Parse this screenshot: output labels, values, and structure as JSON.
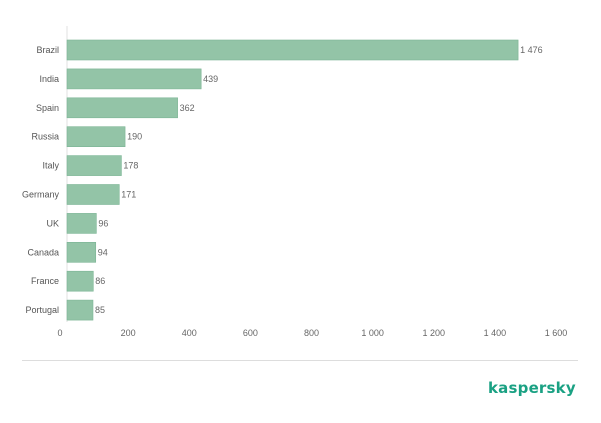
{
  "chart_data": {
    "type": "bar",
    "orientation": "horizontal",
    "categories": [
      "Brazil",
      "India",
      "Spain",
      "Russia",
      "Italy",
      "Germany",
      "UK",
      "Canada",
      "France",
      "Portugal"
    ],
    "values": [
      1476,
      439,
      362,
      190,
      178,
      171,
      96,
      94,
      86,
      85
    ],
    "value_labels": [
      "1 476",
      "439",
      "362",
      "190",
      "178",
      "171",
      "96",
      "94",
      "86",
      "85"
    ],
    "title": "",
    "xlabel": "",
    "ylabel": "",
    "xlim": [
      0,
      1600
    ],
    "ticks": [
      0,
      200,
      400,
      600,
      800,
      1000,
      1200,
      1400,
      1600
    ],
    "tick_labels": [
      "0",
      "200",
      "400",
      "600",
      "800",
      "1 000",
      "1 200",
      "1 400",
      "1 600"
    ],
    "grid": false,
    "legend": "none",
    "bar_color": "#93c4a7"
  },
  "branding": {
    "logo_text": "kaspersky",
    "color": "#1aa183"
  }
}
